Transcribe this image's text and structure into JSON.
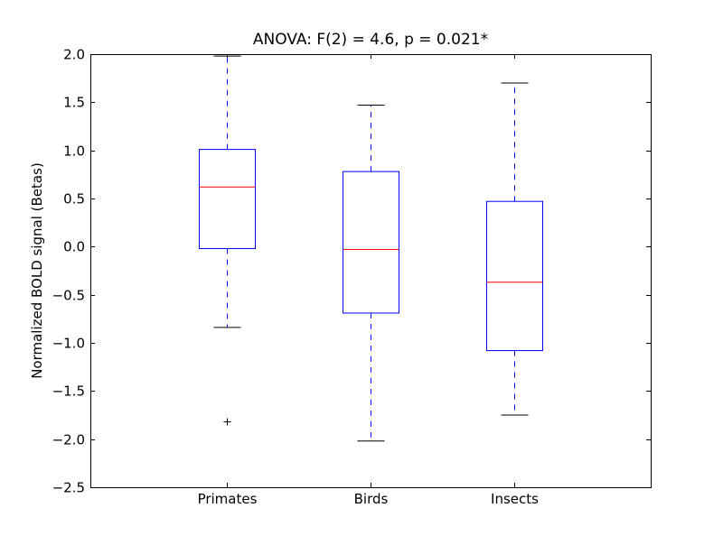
{
  "chart_data": {
    "type": "boxplot",
    "title": "ANOVA: F(2) = 4.6, p = 0.021*",
    "xlabel": "",
    "ylabel": "Normalized BOLD signal (Betas)",
    "ylim": [
      -2.5,
      2.0
    ],
    "yticks": [
      "2.0",
      "1.5",
      "1.0",
      "0.5",
      "0.0",
      "−0.5",
      "−1.0",
      "−1.5",
      "−2.0",
      "−2.5"
    ],
    "ytick_values": [
      2.0,
      1.5,
      1.0,
      0.5,
      0.0,
      -0.5,
      -1.0,
      -1.5,
      -2.0,
      -2.5
    ],
    "categories": [
      "Primates",
      "Birds",
      "Insects"
    ],
    "boxes": [
      {
        "whisker_high": 1.98,
        "q3": 1.01,
        "median": 0.62,
        "q1": -0.02,
        "whisker_low": -0.84,
        "outliers": [
          -1.82
        ]
      },
      {
        "whisker_high": 1.47,
        "q3": 0.78,
        "median": -0.03,
        "q1": -0.69,
        "whisker_low": -2.02,
        "outliers": []
      },
      {
        "whisker_high": 1.7,
        "q3": 0.47,
        "median": -0.37,
        "q1": -1.08,
        "whisker_low": -1.75,
        "outliers": []
      }
    ],
    "grid": false,
    "colors": {
      "box": "#0000ff",
      "median": "#ff0000",
      "whisker": "#0000ff",
      "cap": "#000000",
      "outlier": "#000000"
    }
  }
}
